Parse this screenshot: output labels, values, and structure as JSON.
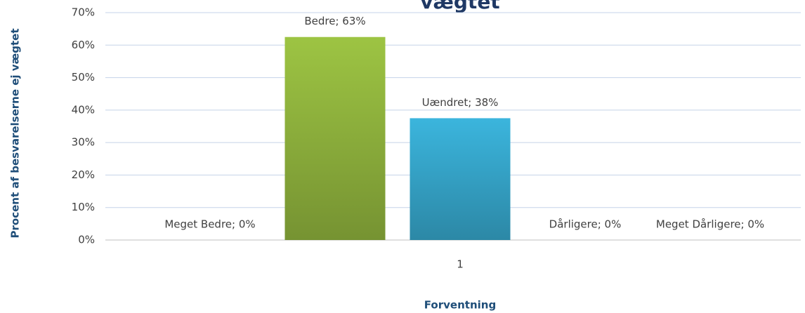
{
  "chart_data": {
    "type": "bar",
    "title": "vægtet",
    "categories": [
      "1"
    ],
    "series": [
      {
        "name": "Meget Bedre",
        "color": "#5b7fbf",
        "values": [
          0
        ],
        "value_labels": [
          "Meget Bedre; 0%"
        ]
      },
      {
        "name": "Bedre",
        "color": "#9dc443",
        "values": [
          62.5
        ],
        "value_labels": [
          "Bedre; 63%"
        ]
      },
      {
        "name": "Uændret",
        "color": "#3bb5dd",
        "values": [
          37.5
        ],
        "value_labels": [
          "Uændret; 38%"
        ]
      },
      {
        "name": "Dårligere",
        "color": "#e0883a",
        "values": [
          0
        ],
        "value_labels": [
          "Dårligere; 0%"
        ]
      },
      {
        "name": "Meget Dårligere",
        "color": "#c0504d",
        "values": [
          0
        ],
        "value_labels": [
          "Meget Dårligere; 0%"
        ]
      }
    ],
    "ylim": [
      0,
      70
    ],
    "yticks": [
      {
        "value": 0,
        "label": "0%"
      },
      {
        "value": 10,
        "label": "10%"
      },
      {
        "value": 20,
        "label": "20%"
      },
      {
        "value": 30,
        "label": "30%"
      },
      {
        "value": 40,
        "label": "40%"
      },
      {
        "value": 50,
        "label": "50%"
      },
      {
        "value": 60,
        "label": "60%"
      },
      {
        "value": 70,
        "label": "70%"
      }
    ],
    "y_label": "Procent af besvarelserne ej vægtet",
    "x_label": "Forventning",
    "grid": true
  }
}
